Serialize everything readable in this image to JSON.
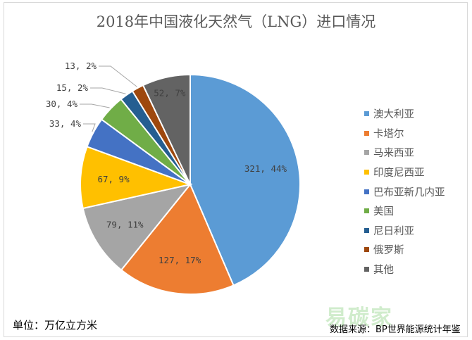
{
  "chart_data": {
    "type": "pie",
    "title": "2018年中国液化天然气（LNG）进口情况",
    "unit_label": "单位：万亿立方米",
    "source": "数据来源：BP世界能源统计年鉴",
    "legend_position": "right",
    "slices": [
      {
        "name": "澳大利亚",
        "value": 321,
        "percent": 44,
        "label": "321, 44%",
        "color": "#5b9bd5"
      },
      {
        "name": "卡塔尔",
        "value": 127,
        "percent": 17,
        "label": "127, 17%",
        "color": "#ed7d31"
      },
      {
        "name": "马来西亚",
        "value": 79,
        "percent": 11,
        "label": "79, 11%",
        "color": "#a5a5a5"
      },
      {
        "name": "印度尼西亚",
        "value": 67,
        "percent": 9,
        "label": "67, 9%",
        "color": "#ffc000"
      },
      {
        "name": "巴布亚新几内亚",
        "value": 33,
        "percent": 4,
        "label": "33, 4%",
        "color": "#4472c4"
      },
      {
        "name": "美国",
        "value": 30,
        "percent": 4,
        "label": "30, 4%",
        "color": "#70ad47"
      },
      {
        "name": "尼日利亚",
        "value": 15,
        "percent": 2,
        "label": "15, 2%",
        "color": "#255e91"
      },
      {
        "name": "俄罗斯",
        "value": 13,
        "percent": 2,
        "label": "13, 2%",
        "color": "#9e480e"
      },
      {
        "name": "其他",
        "value": 52,
        "percent": 7,
        "label": "52, 7%",
        "color": "#636363"
      }
    ]
  },
  "watermark": "易碳家"
}
